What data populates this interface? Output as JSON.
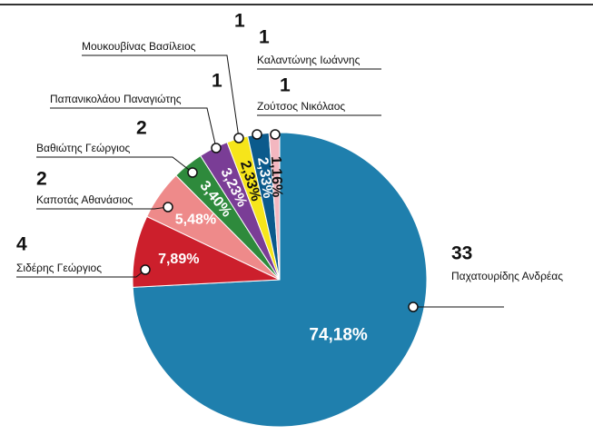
{
  "chart_data": {
    "type": "pie",
    "categories": [
      "Παχατουρίδης Ανδρέας",
      "Σιδέρης Γεώργιος",
      "Καποτάς Αθανάσιος",
      "Βαθιώτης Γεώργιος",
      "Παπανικολάου Παναγιώτης",
      "Μουκουβίνας Βασίλειος",
      "Καλαντώνης Ιωάννης",
      "Ζούτσος Νικόλαος"
    ],
    "values": [
      74.18,
      7.89,
      5.48,
      3.4,
      3.23,
      2.33,
      2.33,
      1.16
    ],
    "value_labels": [
      "74,18%",
      "7,89%",
      "5,48%",
      "3,40%",
      "3,23%",
      "2,33%",
      "2,33%",
      "1,16%"
    ],
    "counts": [
      33,
      4,
      2,
      2,
      1,
      1,
      1,
      1
    ],
    "colors": [
      "#1f7fad",
      "#cc1f2c",
      "#ee8a8a",
      "#2e8a3c",
      "#7a3d96",
      "#f6e51a",
      "#0b5a8c",
      "#f3b7c0"
    ]
  }
}
